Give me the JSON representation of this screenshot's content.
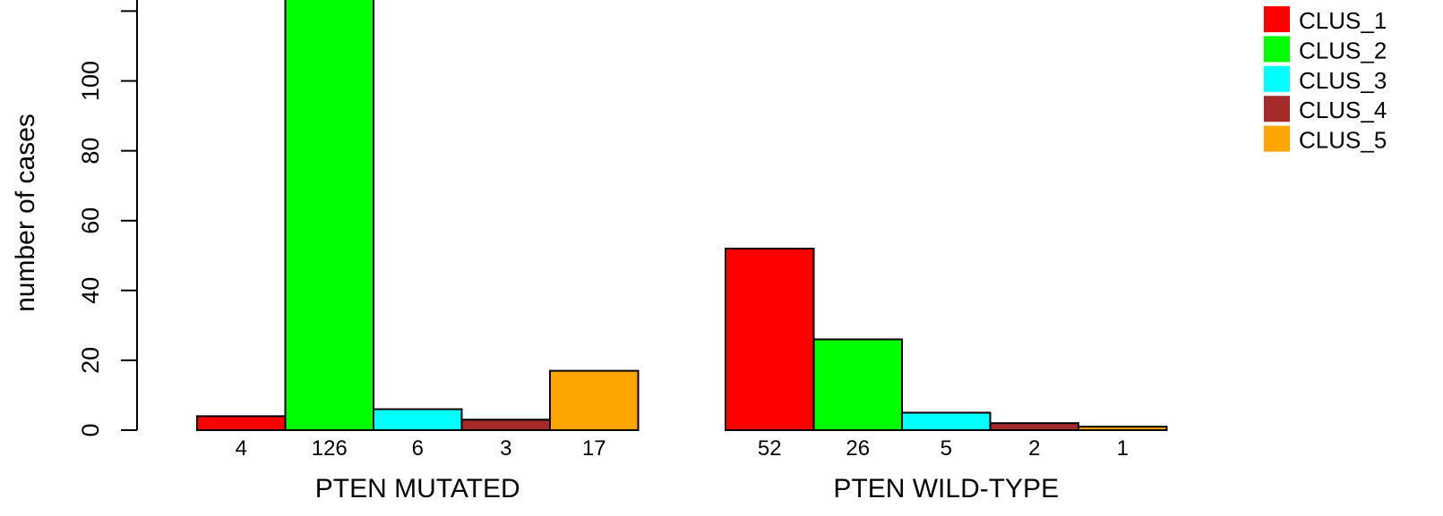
{
  "chart_data": {
    "type": "bar",
    "ylabel": "number of cases",
    "ylim": [
      0,
      126
    ],
    "yticks": [
      0,
      20,
      40,
      60,
      80,
      100
    ],
    "groups": [
      {
        "label": "PTEN MUTATED",
        "values": [
          4,
          126,
          6,
          3,
          17
        ]
      },
      {
        "label": "PTEN WILD-TYPE",
        "values": [
          52,
          26,
          5,
          2,
          1
        ]
      }
    ],
    "series": [
      {
        "name": "CLUS_1",
        "color": "#ff0000"
      },
      {
        "name": "CLUS_2",
        "color": "#00ff00"
      },
      {
        "name": "CLUS_3",
        "color": "#00ffff"
      },
      {
        "name": "CLUS_4",
        "color": "#a52a2a"
      },
      {
        "name": "CLUS_5",
        "color": "#ffa500"
      }
    ],
    "legend_position": "top-right",
    "grid": false
  }
}
